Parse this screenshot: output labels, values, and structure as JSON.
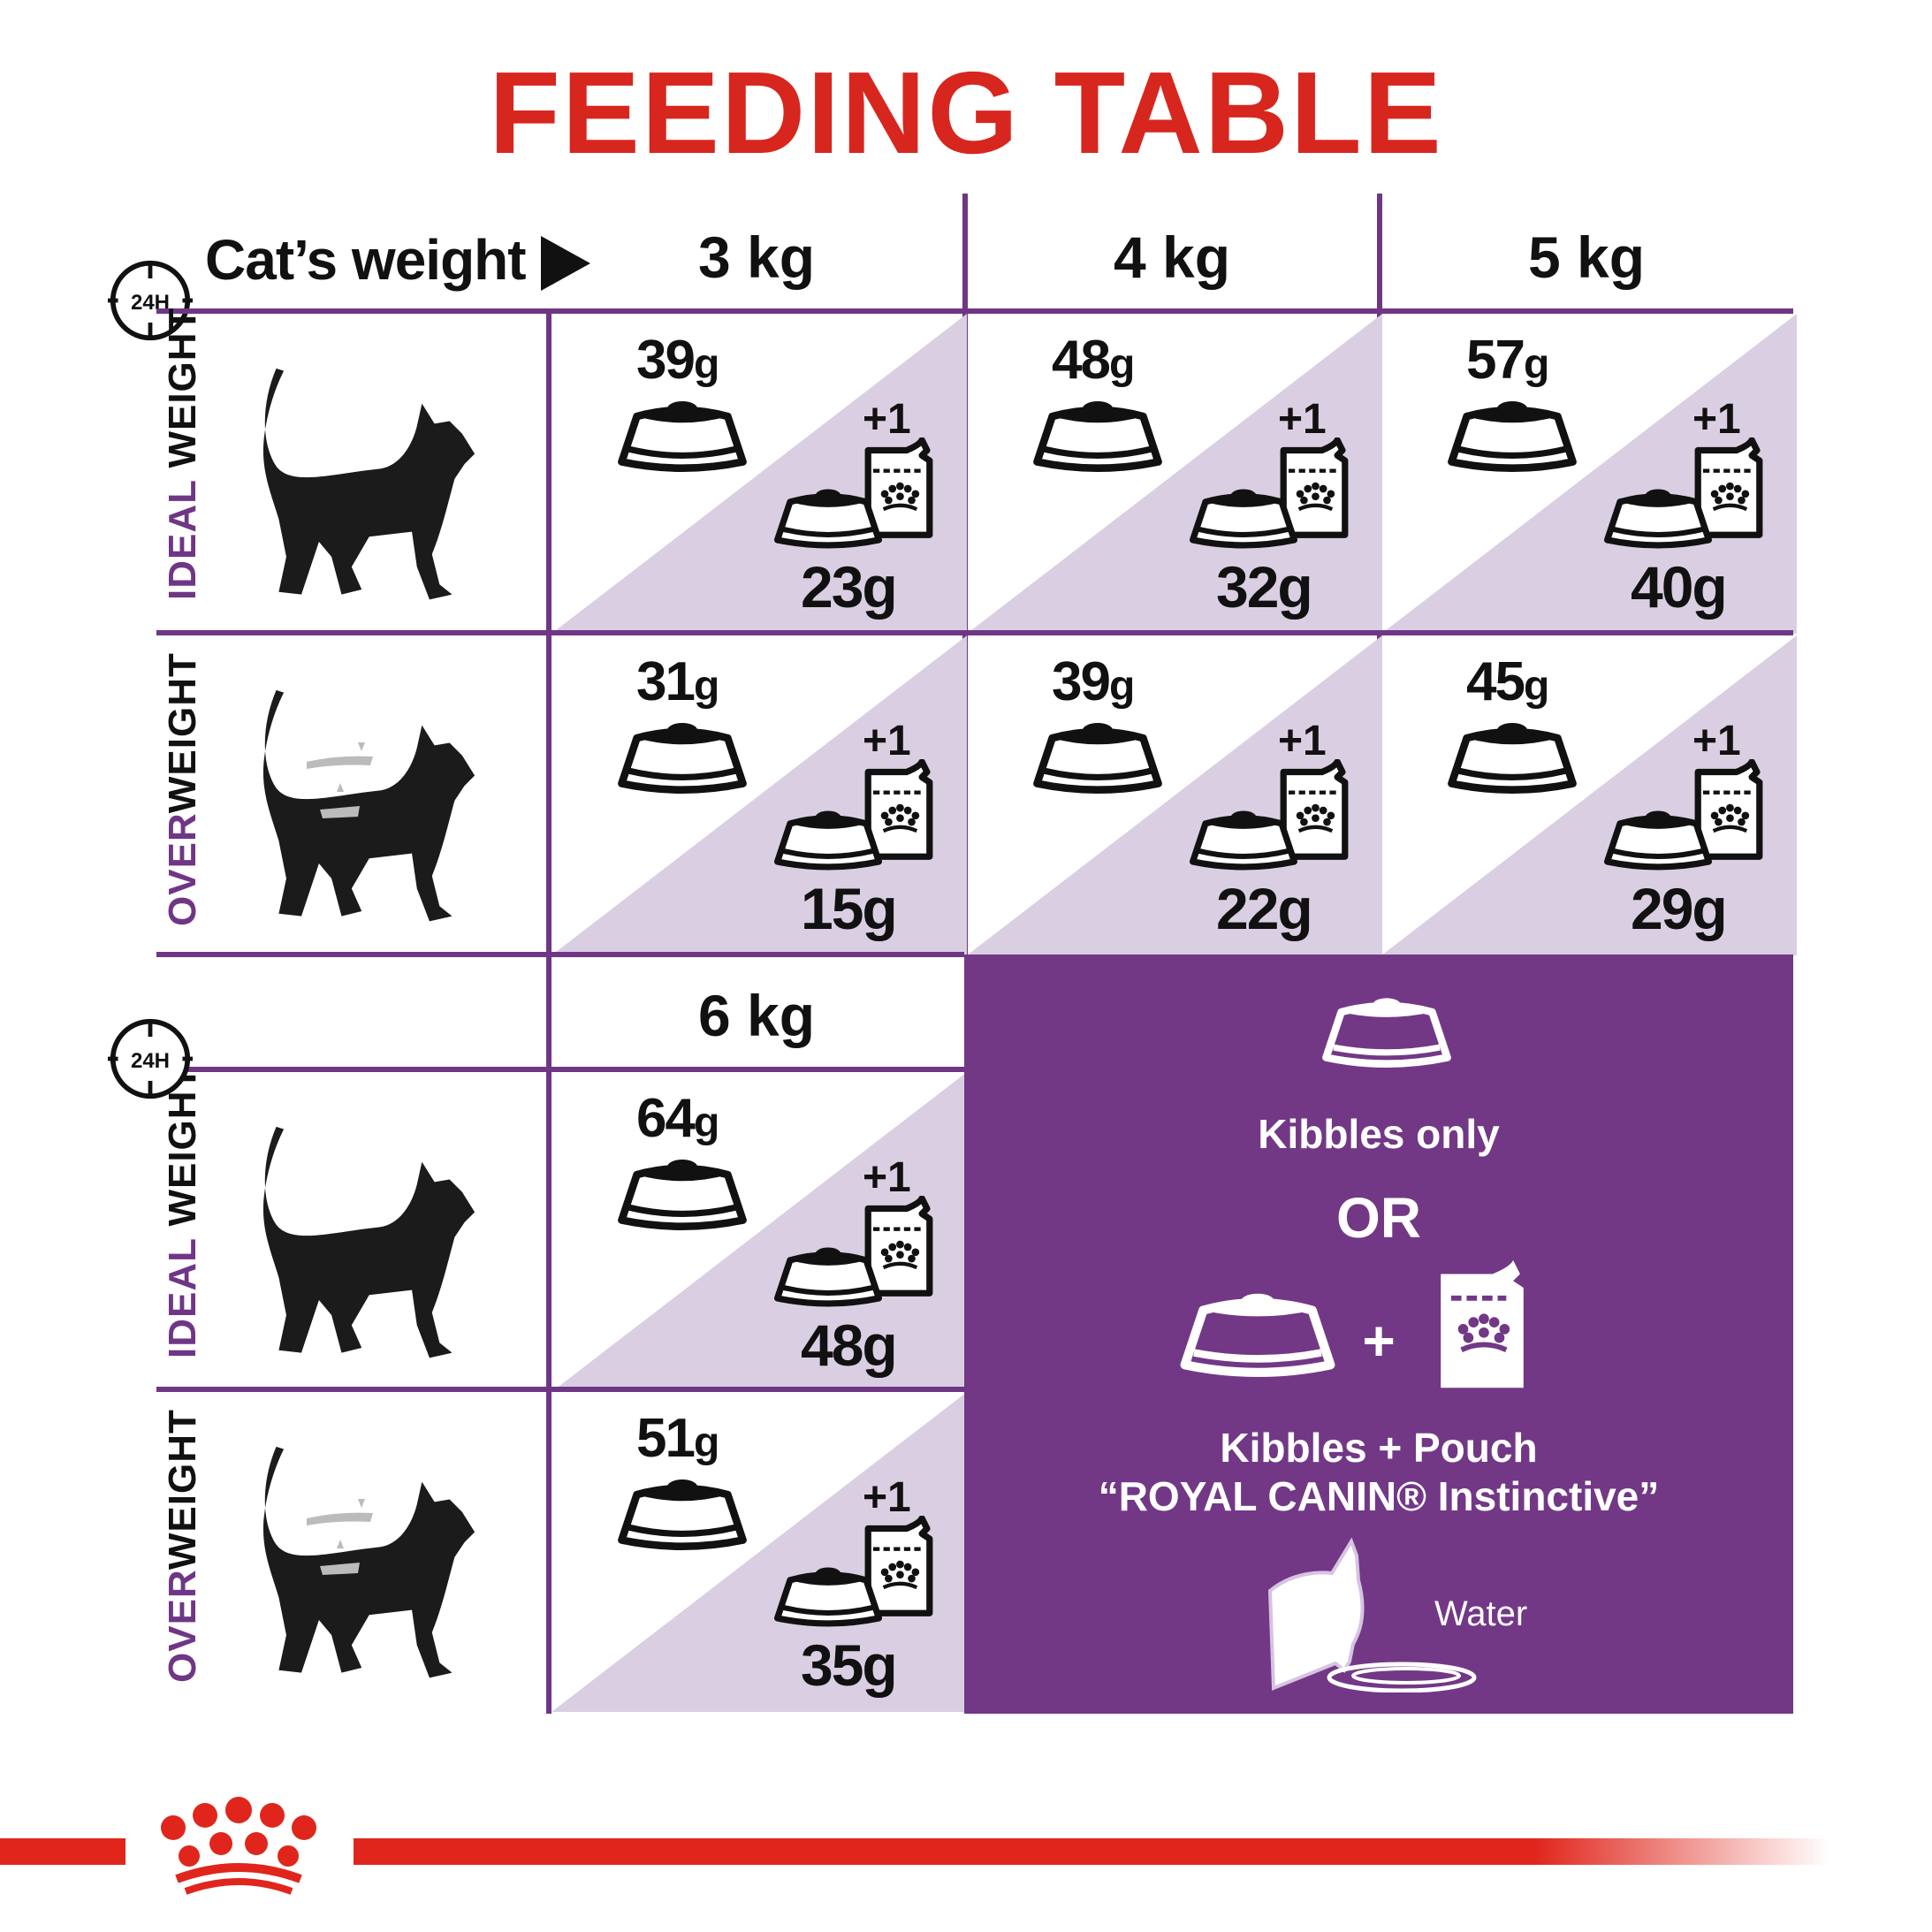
{
  "title": "FEEDING TABLE",
  "header": {
    "label": "Cat’s weight",
    "arrow_icon": "triangle-right",
    "clock_label": "24H"
  },
  "weights_top": [
    "3 kg",
    "4 kg",
    "5 kg"
  ],
  "weights_bottom": [
    "6 kg"
  ],
  "row_labels": {
    "ideal": {
      "accent": "IDEAL",
      "rest": " WEIGHT"
    },
    "over": {
      "accent": "OVER",
      "rest": "WEIGHT"
    }
  },
  "pouch_count": "+1",
  "unit": "g",
  "table_top": {
    "ideal": {
      "kibbles_only": [
        "39",
        "48",
        "57"
      ],
      "kibbles_with_pouch": [
        "23",
        "32",
        "40"
      ]
    },
    "over": {
      "kibbles_only": [
        "31",
        "39",
        "45"
      ],
      "kibbles_with_pouch": [
        "15",
        "22",
        "29"
      ]
    }
  },
  "table_bottom": {
    "ideal": {
      "kibbles_only": [
        "64"
      ],
      "kibbles_with_pouch": [
        "48"
      ]
    },
    "over": {
      "kibbles_only": [
        "51"
      ],
      "kibbles_with_pouch": [
        "35"
      ]
    }
  },
  "legend": {
    "kibbles_only": "Kibbles only",
    "or": "OR",
    "plus": "+",
    "kibbles_pouch": "Kibbles + Pouch",
    "pouch_name": "“ROYAL CANIN® Instinctive”",
    "water": "Water"
  },
  "brand_logo_text": "ROYAL CANIN",
  "colors": {
    "title_red": "#d7261e",
    "purple": "#6f3686",
    "lavender": "#dacfe2",
    "panel": "#723886",
    "text": "#111111"
  }
}
